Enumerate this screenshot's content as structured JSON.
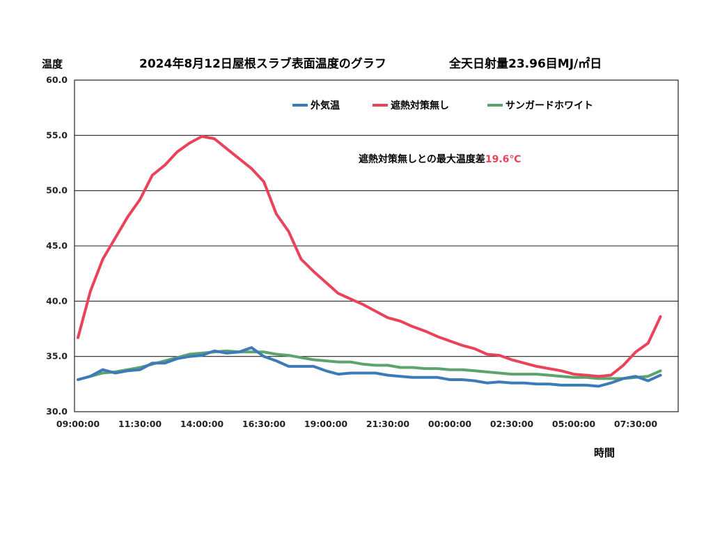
{
  "chart_data": {
    "type": "line",
    "title": "2024年8月12日屋根スラブ表面温度のグラフ",
    "subtitle": "全天日射量23.96目MJ/㎡日",
    "ylabel": "温度",
    "xlabel": "時間",
    "ylim": [
      30.0,
      60.0
    ],
    "y_ticks": [
      "30.0",
      "35.0",
      "40.0",
      "45.0",
      "50.0",
      "55.0",
      "60.0"
    ],
    "x_ticks": [
      "09:00:00",
      "11:30:00",
      "14:00:00",
      "16:30:00",
      "19:00:00",
      "21:30:00",
      "00:00:00",
      "02:30:00",
      "05:00:00",
      "07:30:00"
    ],
    "grid": "horizontal",
    "legend_position": "top-right",
    "annotation": {
      "text": "遮熱対策無しとの最大温度差",
      "value": "19.6℃"
    },
    "x": [
      "09:00",
      "09:30",
      "10:00",
      "10:30",
      "11:00",
      "11:30",
      "12:00",
      "12:30",
      "13:00",
      "13:30",
      "14:00",
      "14:30",
      "15:00",
      "15:30",
      "16:00",
      "16:30",
      "17:00",
      "17:30",
      "18:00",
      "18:30",
      "19:00",
      "19:30",
      "20:00",
      "20:30",
      "21:00",
      "21:30",
      "22:00",
      "22:30",
      "23:00",
      "23:30",
      "00:00",
      "00:30",
      "01:00",
      "01:30",
      "02:00",
      "02:30",
      "03:00",
      "03:30",
      "04:00",
      "04:30",
      "05:00",
      "05:30",
      "06:00",
      "06:30",
      "07:00",
      "07:30",
      "08:00",
      "08:30"
    ],
    "series": [
      {
        "name": "外気温",
        "color": "#3d7ab8",
        "values": [
          32.9,
          33.2,
          33.8,
          33.5,
          33.7,
          33.8,
          34.4,
          34.4,
          34.8,
          35.0,
          35.1,
          35.5,
          35.3,
          35.4,
          35.8,
          35.0,
          34.6,
          34.1,
          34.1,
          34.1,
          33.7,
          33.4,
          33.5,
          33.5,
          33.5,
          33.3,
          33.2,
          33.1,
          33.1,
          33.1,
          32.9,
          32.9,
          32.8,
          32.6,
          32.7,
          32.6,
          32.6,
          32.5,
          32.5,
          32.4,
          32.4,
          32.4,
          32.3,
          32.6,
          33.0,
          33.2,
          32.8,
          33.3
        ]
      },
      {
        "name": "遮熱対策無し",
        "color": "#e9435a",
        "values": [
          36.7,
          40.9,
          43.8,
          45.7,
          47.6,
          49.2,
          51.4,
          52.3,
          53.5,
          54.3,
          54.9,
          54.7,
          53.8,
          52.9,
          52.0,
          50.8,
          47.9,
          46.3,
          43.8,
          42.7,
          41.7,
          40.7,
          40.2,
          39.7,
          39.1,
          38.5,
          38.2,
          37.7,
          37.3,
          36.8,
          36.4,
          36.0,
          35.7,
          35.2,
          35.1,
          34.7,
          34.4,
          34.1,
          33.9,
          33.7,
          33.4,
          33.3,
          33.2,
          33.3,
          34.2,
          35.4,
          36.2,
          38.6
        ]
      },
      {
        "name": "サンガードホワイト",
        "color": "#5ca36e",
        "values": [
          32.9,
          33.2,
          33.5,
          33.6,
          33.8,
          34.0,
          34.3,
          34.6,
          34.9,
          35.2,
          35.3,
          35.4,
          35.5,
          35.4,
          35.4,
          35.4,
          35.2,
          35.1,
          34.9,
          34.7,
          34.6,
          34.5,
          34.5,
          34.3,
          34.2,
          34.2,
          34.0,
          34.0,
          33.9,
          33.9,
          33.8,
          33.8,
          33.7,
          33.6,
          33.5,
          33.4,
          33.4,
          33.4,
          33.3,
          33.2,
          33.1,
          33.1,
          33.0,
          33.0,
          33.0,
          33.1,
          33.2,
          33.7
        ]
      }
    ]
  }
}
